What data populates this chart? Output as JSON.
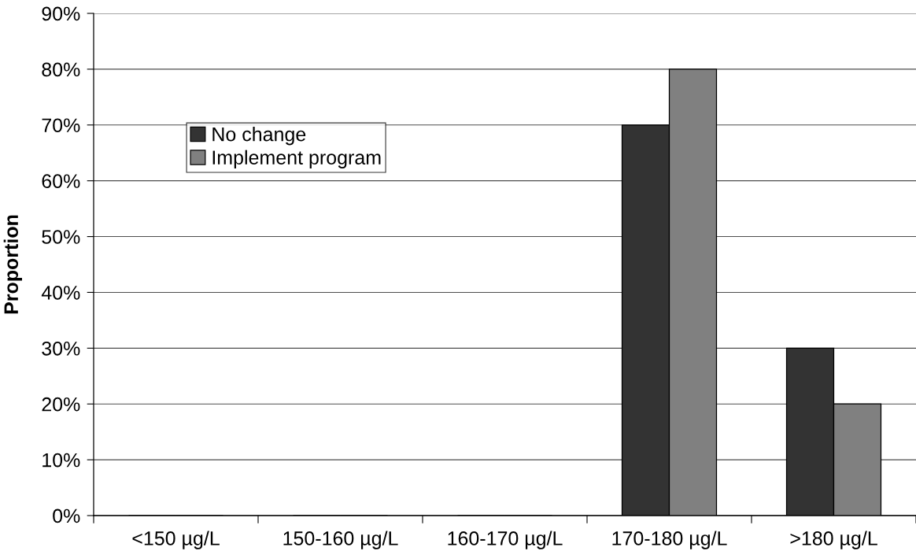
{
  "chart_data": {
    "type": "bar",
    "ylabel": "Proportion",
    "categories": [
      "<150 µg/L",
      "150-160 µg/L",
      "160-170 µg/L",
      "170-180 µg/L",
      ">180 µg/L"
    ],
    "series": [
      {
        "name": "No change",
        "color": "#333333",
        "values": [
          0,
          0,
          0,
          70,
          30
        ]
      },
      {
        "name": "Implement program",
        "color": "#808080",
        "values": [
          0,
          0,
          0,
          80,
          20
        ]
      }
    ],
    "ylim": [
      0,
      90
    ],
    "yticks": [
      {
        "value": 0,
        "label": "0%"
      },
      {
        "value": 10,
        "label": "10%"
      },
      {
        "value": 20,
        "label": "20%"
      },
      {
        "value": 30,
        "label": "30%"
      },
      {
        "value": 40,
        "label": "40%"
      },
      {
        "value": 50,
        "label": "50%"
      },
      {
        "value": 60,
        "label": "60%"
      },
      {
        "value": 70,
        "label": "70%"
      },
      {
        "value": 80,
        "label": "80%"
      },
      {
        "value": 90,
        "label": "90%"
      }
    ],
    "grid": "y",
    "legend": "top left"
  }
}
